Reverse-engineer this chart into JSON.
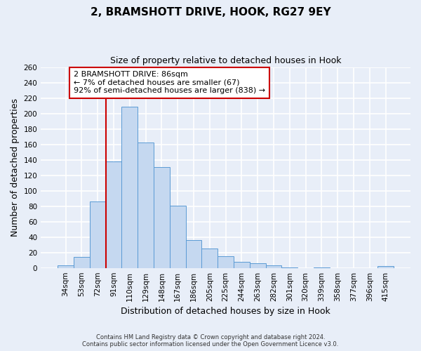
{
  "title": "2, BRAMSHOTT DRIVE, HOOK, RG27 9EY",
  "subtitle": "Size of property relative to detached houses in Hook",
  "xlabel": "Distribution of detached houses by size in Hook",
  "ylabel": "Number of detached properties",
  "bar_color": "#c5d8f0",
  "bar_edge_color": "#5b9bd5",
  "categories": [
    "34sqm",
    "53sqm",
    "72sqm",
    "91sqm",
    "110sqm",
    "129sqm",
    "148sqm",
    "167sqm",
    "186sqm",
    "205sqm",
    "225sqm",
    "244sqm",
    "263sqm",
    "282sqm",
    "301sqm",
    "320sqm",
    "339sqm",
    "358sqm",
    "377sqm",
    "396sqm",
    "415sqm"
  ],
  "values": [
    3,
    14,
    86,
    138,
    209,
    162,
    131,
    81,
    36,
    25,
    15,
    8,
    6,
    3,
    1,
    0,
    1,
    0,
    0,
    0,
    2
  ],
  "vline_index": 2.5,
  "vline_color": "#cc0000",
  "ylim": [
    0,
    260
  ],
  "yticks": [
    0,
    20,
    40,
    60,
    80,
    100,
    120,
    140,
    160,
    180,
    200,
    220,
    240,
    260
  ],
  "annotation_title": "2 BRAMSHOTT DRIVE: 86sqm",
  "annotation_line1": "← 7% of detached houses are smaller (67)",
  "annotation_line2": "92% of semi-detached houses are larger (838) →",
  "annotation_box_color": "#ffffff",
  "annotation_box_edge": "#cc0000",
  "footer_line1": "Contains HM Land Registry data © Crown copyright and database right 2024.",
  "footer_line2": "Contains public sector information licensed under the Open Government Licence v3.0.",
  "bg_color": "#e8eef8",
  "plot_bg_color": "#e8eef8",
  "grid_color": "#ffffff",
  "title_fontsize": 11,
  "subtitle_fontsize": 9,
  "tick_fontsize": 7.5,
  "label_fontsize": 9,
  "annotation_fontsize": 8
}
